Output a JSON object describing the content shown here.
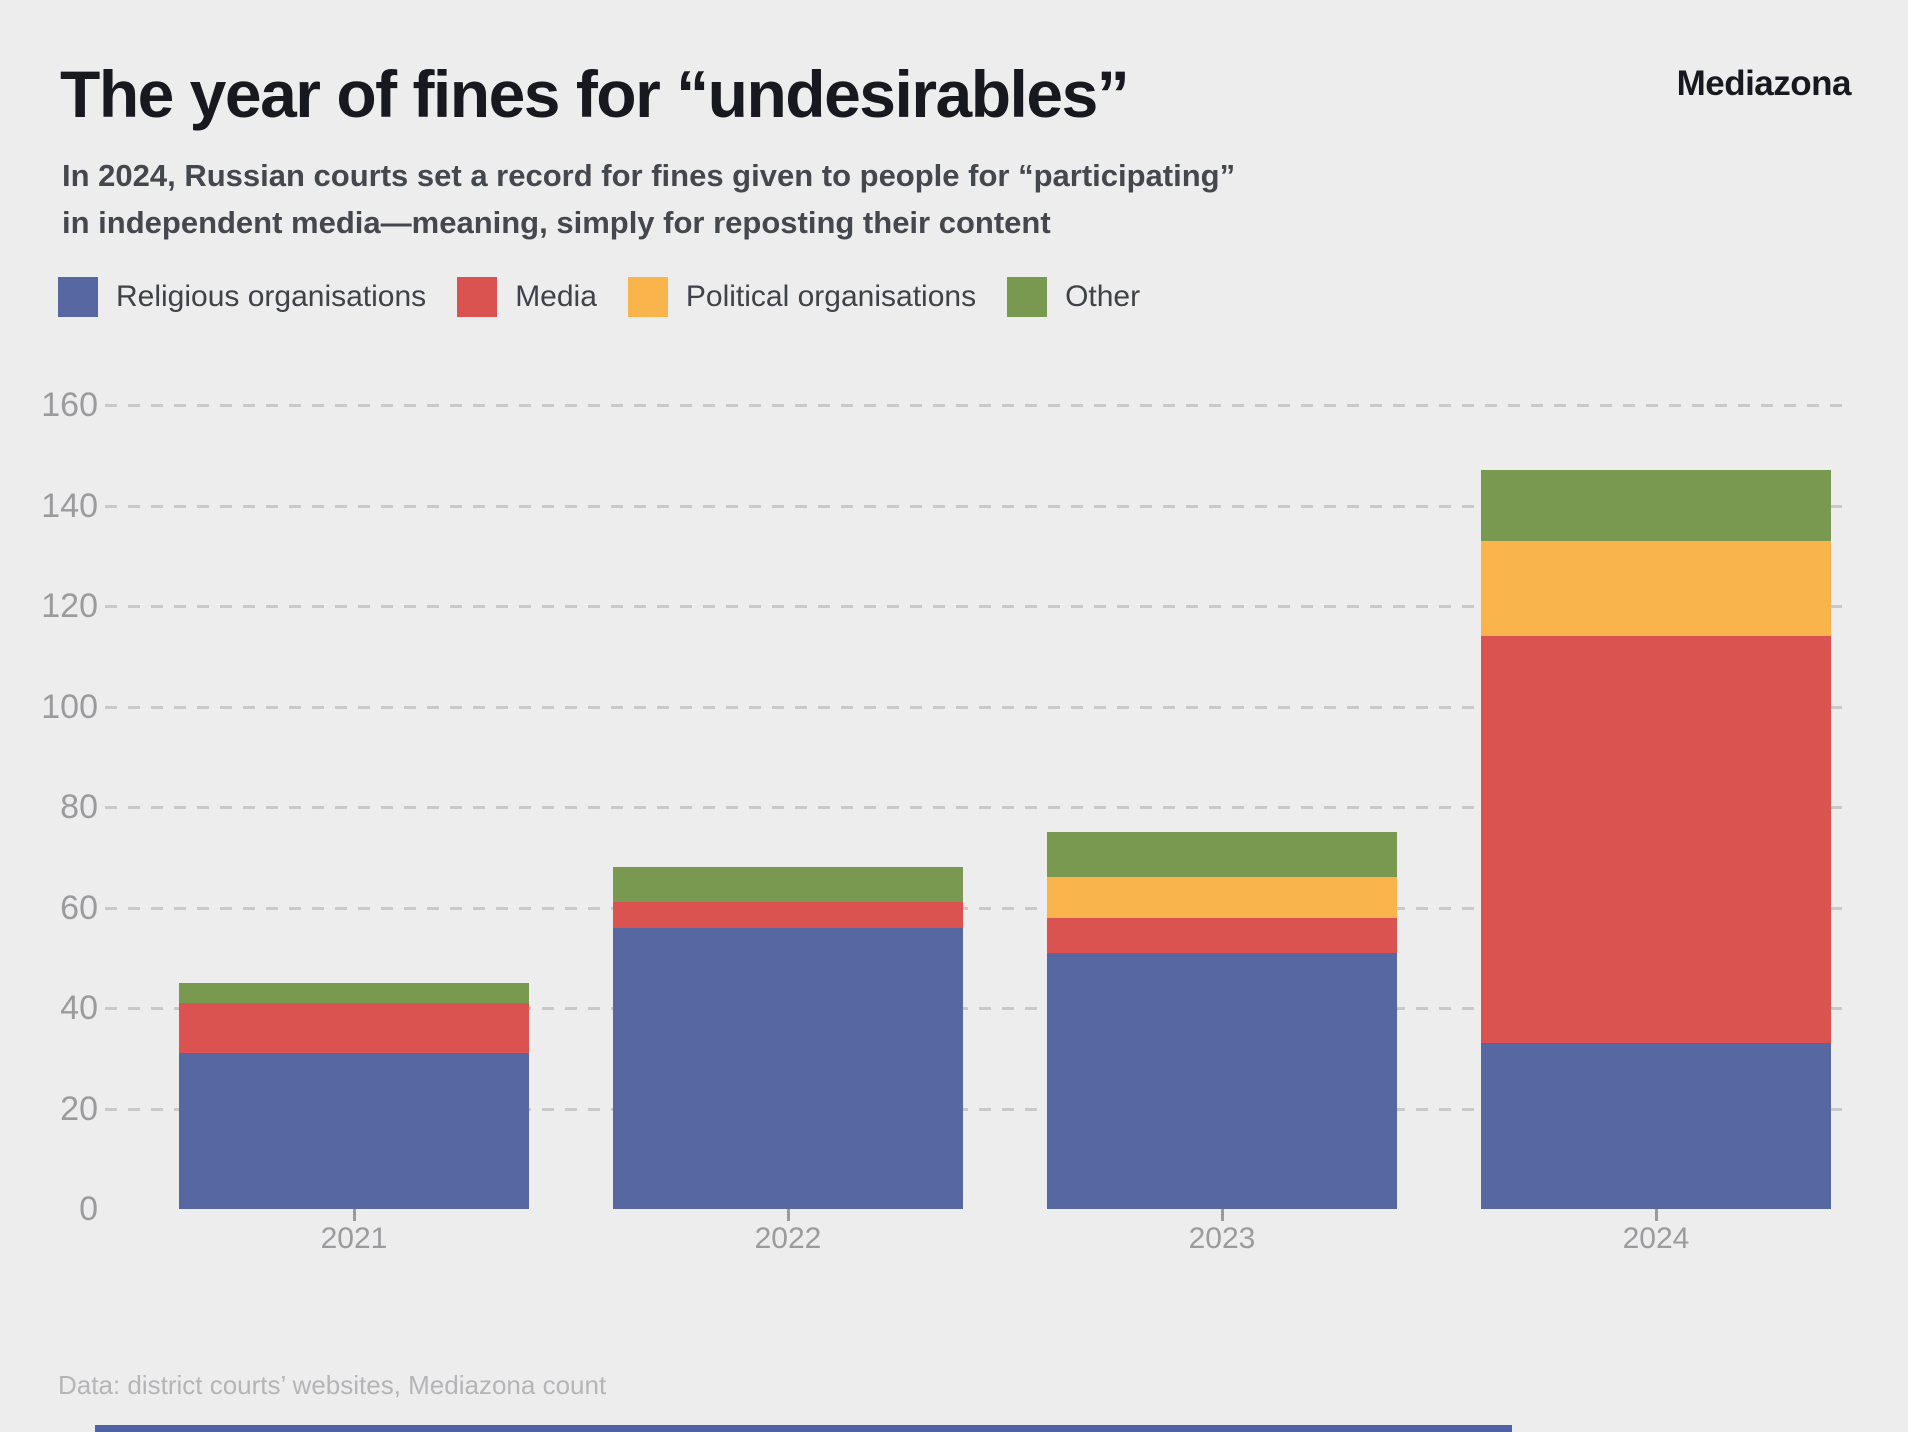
{
  "header": {
    "title": "The year of fines for “undesirables”",
    "brand": "Mediazona",
    "subtitle_line1": "In 2024, Russian courts set a record for fines given to people for “participating”",
    "subtitle_line2": "in independent media—meaning, simply for reposting their content"
  },
  "chart_data": {
    "type": "bar",
    "stacked": true,
    "title": "The year of fines for “undesirables”",
    "categories": [
      "2021",
      "2022",
      "2023",
      "2024"
    ],
    "series": [
      {
        "name": "Religious organisations",
        "color": "#5667a2",
        "values": [
          31,
          56,
          51,
          33
        ]
      },
      {
        "name": "Media",
        "color": "#da5351",
        "values": [
          10,
          5,
          7,
          81
        ]
      },
      {
        "name": "Political organisations",
        "color": "#fab44c",
        "values": [
          0,
          0,
          8,
          19
        ]
      },
      {
        "name": "Other",
        "color": "#78994f",
        "values": [
          4,
          7,
          9,
          14
        ]
      }
    ],
    "totals": [
      45,
      68,
      75,
      147
    ],
    "xlabel": "",
    "ylabel": "",
    "ylim": [
      0,
      160
    ],
    "yticks": [
      0,
      20,
      40,
      60,
      80,
      100,
      120,
      140,
      160
    ],
    "grid": "horizontal-dashed",
    "legend_position": "top-left"
  },
  "footer": {
    "source": "Data: district courts’ websites, Mediazona count"
  }
}
